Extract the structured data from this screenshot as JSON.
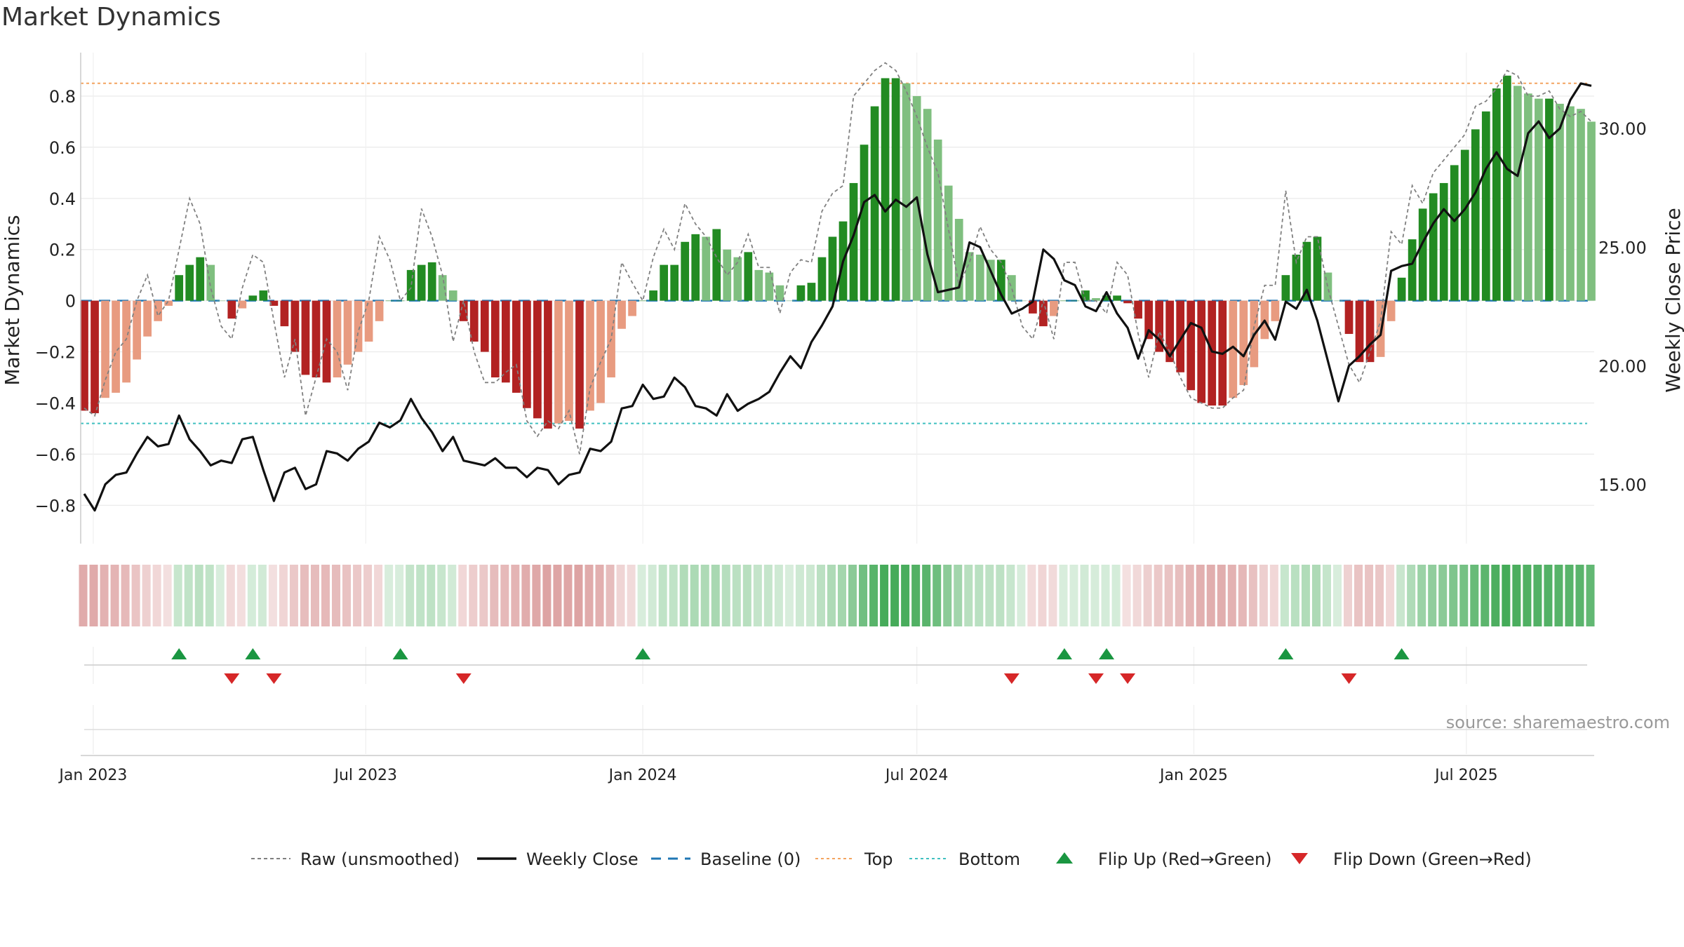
{
  "title": "Market Dynamics",
  "source": "source: sharemaestro.com",
  "chart_data": {
    "type": "bar",
    "title": "Market Dynamics",
    "ylabel": "Market Dynamics",
    "y2label": "Weekly Close Price",
    "ylim": [
      -0.95,
      0.97
    ],
    "y2lim": [
      12.5,
      33.2
    ],
    "yticks": [
      "0.8",
      "0.6",
      "0.4",
      "0.2",
      "0",
      "−0.2",
      "−0.4",
      "−0.6",
      "−0.8"
    ],
    "ytick_values": [
      0.8,
      0.6,
      0.4,
      0.2,
      0,
      -0.2,
      -0.4,
      -0.6,
      -0.8
    ],
    "y2ticks": [
      "30.00",
      "25.00",
      "20.00",
      "15.00"
    ],
    "y2tick_values": [
      30,
      25,
      20,
      15
    ],
    "xticks": [
      "Jan 2023",
      "Jul 2023",
      "Jan 2024",
      "Jul 2024",
      "Jan 2025",
      "Jul 2025"
    ],
    "xtick_dates": [
      "2023-01-01",
      "2023-07-01",
      "2024-01-01",
      "2024-07-01",
      "2025-01-01",
      "2025-07-01"
    ],
    "start_date": "2022-12-26",
    "top_level": 0.85,
    "bottom_level": -0.48,
    "baseline": 0,
    "grid": true,
    "legend_position": "bottom",
    "colors": {
      "bull_strong": "#228b22",
      "bull_weak": "#7fbf7f",
      "bear_strong": "#b22222",
      "bear_weak": "#e89b80",
      "close": "#111111",
      "raw": "#808080",
      "baseline": "#1f77b4",
      "top": "#f4a460",
      "bottom": "#40c0c0",
      "flip_up": "#1a9641",
      "flip_down": "#d62728"
    },
    "series": [
      {
        "name": "Market Dynamics",
        "values": [
          -0.43,
          -0.44,
          -0.38,
          -0.36,
          -0.32,
          -0.23,
          -0.14,
          -0.08,
          -0.02,
          0.1,
          0.14,
          0.17,
          0.14,
          0.0,
          -0.07,
          -0.03,
          0.02,
          0.04,
          -0.02,
          -0.1,
          -0.2,
          -0.29,
          -0.3,
          -0.32,
          -0.3,
          -0.25,
          -0.2,
          -0.16,
          -0.08,
          0.0,
          0.0,
          0.12,
          0.14,
          0.15,
          0.1,
          0.04,
          -0.08,
          -0.16,
          -0.2,
          -0.3,
          -0.32,
          -0.36,
          -0.42,
          -0.46,
          -0.5,
          -0.48,
          -0.47,
          -0.5,
          -0.43,
          -0.4,
          -0.3,
          -0.11,
          -0.06,
          0.0,
          0.04,
          0.14,
          0.14,
          0.23,
          0.26,
          0.25,
          0.28,
          0.2,
          0.17,
          0.19,
          0.12,
          0.11,
          0.06,
          0.0,
          0.06,
          0.07,
          0.17,
          0.25,
          0.31,
          0.46,
          0.61,
          0.76,
          0.87,
          0.87,
          0.85,
          0.8,
          0.75,
          0.63,
          0.45,
          0.32,
          0.19,
          0.18,
          0.16,
          0.16,
          0.1,
          0.0,
          -0.05,
          -0.1,
          -0.06,
          0.0,
          0.0,
          0.04,
          0.01,
          0.02,
          0.02,
          -0.01,
          -0.07,
          -0.15,
          -0.2,
          -0.24,
          -0.28,
          -0.35,
          -0.4,
          -0.41,
          -0.41,
          -0.38,
          -0.33,
          -0.26,
          -0.15,
          -0.08,
          0.1,
          0.18,
          0.23,
          0.25,
          0.11,
          0.0,
          -0.13,
          -0.24,
          -0.24,
          -0.22,
          -0.08,
          0.09,
          0.24,
          0.36,
          0.42,
          0.46,
          0.53,
          0.59,
          0.67,
          0.74,
          0.83,
          0.88,
          0.84,
          0.81,
          0.79,
          0.79,
          0.77,
          0.76,
          0.75,
          0.7
        ]
      },
      {
        "name": "Raw (unsmoothed)",
        "values": [
          -0.42,
          -0.45,
          -0.31,
          -0.2,
          -0.15,
          0.0,
          0.1,
          -0.06,
          0.0,
          0.2,
          0.4,
          0.3,
          0.05,
          -0.1,
          -0.15,
          0.05,
          0.18,
          0.15,
          -0.08,
          -0.3,
          -0.15,
          -0.45,
          -0.3,
          -0.15,
          -0.2,
          -0.35,
          -0.12,
          0.0,
          0.25,
          0.16,
          0.0,
          0.05,
          0.36,
          0.25,
          0.1,
          -0.16,
          0.0,
          -0.2,
          -0.32,
          -0.32,
          -0.28,
          -0.25,
          -0.47,
          -0.53,
          -0.47,
          -0.5,
          -0.43,
          -0.6,
          -0.34,
          -0.24,
          -0.15,
          0.15,
          0.07,
          0.0,
          0.17,
          0.28,
          0.2,
          0.38,
          0.3,
          0.25,
          0.17,
          0.1,
          0.15,
          0.26,
          0.13,
          0.13,
          -0.05,
          0.11,
          0.16,
          0.15,
          0.35,
          0.42,
          0.45,
          0.8,
          0.85,
          0.9,
          0.93,
          0.9,
          0.82,
          0.72,
          0.6,
          0.5,
          0.28,
          0.06,
          0.15,
          0.29,
          0.2,
          0.15,
          0.05,
          -0.1,
          -0.15,
          0.0,
          -0.15,
          0.15,
          0.15,
          0.0,
          0.0,
          -0.05,
          0.15,
          0.1,
          -0.13,
          -0.3,
          -0.12,
          -0.2,
          -0.3,
          -0.38,
          -0.4,
          -0.42,
          -0.42,
          -0.38,
          -0.35,
          -0.1,
          0.06,
          0.06,
          0.43,
          0.15,
          0.25,
          0.25,
          0.05,
          -0.1,
          -0.25,
          -0.32,
          -0.2,
          -0.08,
          0.27,
          0.22,
          0.45,
          0.38,
          0.5,
          0.55,
          0.6,
          0.65,
          0.76,
          0.78,
          0.83,
          0.9,
          0.88,
          0.8,
          0.8,
          0.82,
          0.75,
          0.72,
          0.74,
          0.7
        ]
      },
      {
        "name": "Weekly Close",
        "values": [
          14.6,
          13.9,
          15.0,
          15.4,
          15.5,
          16.3,
          17.0,
          16.6,
          16.7,
          17.9,
          16.9,
          16.4,
          15.8,
          16.0,
          15.9,
          16.9,
          17.0,
          15.6,
          14.3,
          15.5,
          15.7,
          14.8,
          15.0,
          16.4,
          16.3,
          16.0,
          16.5,
          16.8,
          17.6,
          17.4,
          17.7,
          18.6,
          17.8,
          17.2,
          16.4,
          17.0,
          16.0,
          15.9,
          15.8,
          16.1,
          15.7,
          15.7,
          15.3,
          15.7,
          15.6,
          15.0,
          15.4,
          15.5,
          16.5,
          16.4,
          16.8,
          18.2,
          18.3,
          19.2,
          18.6,
          18.7,
          19.5,
          19.1,
          18.3,
          18.2,
          17.9,
          18.8,
          18.1,
          18.4,
          18.6,
          18.9,
          19.7,
          20.4,
          19.9,
          21.0,
          21.7,
          22.5,
          24.4,
          25.5,
          26.9,
          27.2,
          26.5,
          27.0,
          26.7,
          27.1,
          24.7,
          23.1,
          23.2,
          23.3,
          25.2,
          25.0,
          24.0,
          23.0,
          22.2,
          22.4,
          22.7,
          24.9,
          24.5,
          23.6,
          23.4,
          22.5,
          22.3,
          23.1,
          22.2,
          21.6,
          20.3,
          21.5,
          21.1,
          20.4,
          21.1,
          21.8,
          21.6,
          20.6,
          20.5,
          20.8,
          20.4,
          21.3,
          21.9,
          21.1,
          22.7,
          22.4,
          23.2,
          21.9,
          20.2,
          18.5,
          20.0,
          20.4,
          20.9,
          21.3,
          24.0,
          24.2,
          24.3,
          25.2,
          26.0,
          26.6,
          26.1,
          26.6,
          27.3,
          28.3,
          29.0,
          28.3,
          28.0,
          29.8,
          30.3,
          29.6,
          30.0,
          31.2,
          31.9,
          31.8
        ]
      }
    ],
    "flip_up_weeks": [
      9,
      16,
      30,
      53,
      93,
      97,
      114,
      125
    ],
    "flip_down_weeks": [
      14,
      18,
      36,
      88,
      96,
      99,
      120
    ],
    "legend": [
      {
        "label": "Raw (unsmoothed)",
        "kind": "dashed-gray"
      },
      {
        "label": "Weekly Close",
        "kind": "solid-black"
      },
      {
        "label": "Baseline (0)",
        "kind": "dashed-blue"
      },
      {
        "label": "Top",
        "kind": "dotted-orange"
      },
      {
        "label": "Bottom",
        "kind": "dotted-teal"
      },
      {
        "label": "Flip Up (Red→Green)",
        "kind": "triangle-up"
      },
      {
        "label": "Flip Down (Green→Red)",
        "kind": "triangle-down"
      }
    ]
  }
}
